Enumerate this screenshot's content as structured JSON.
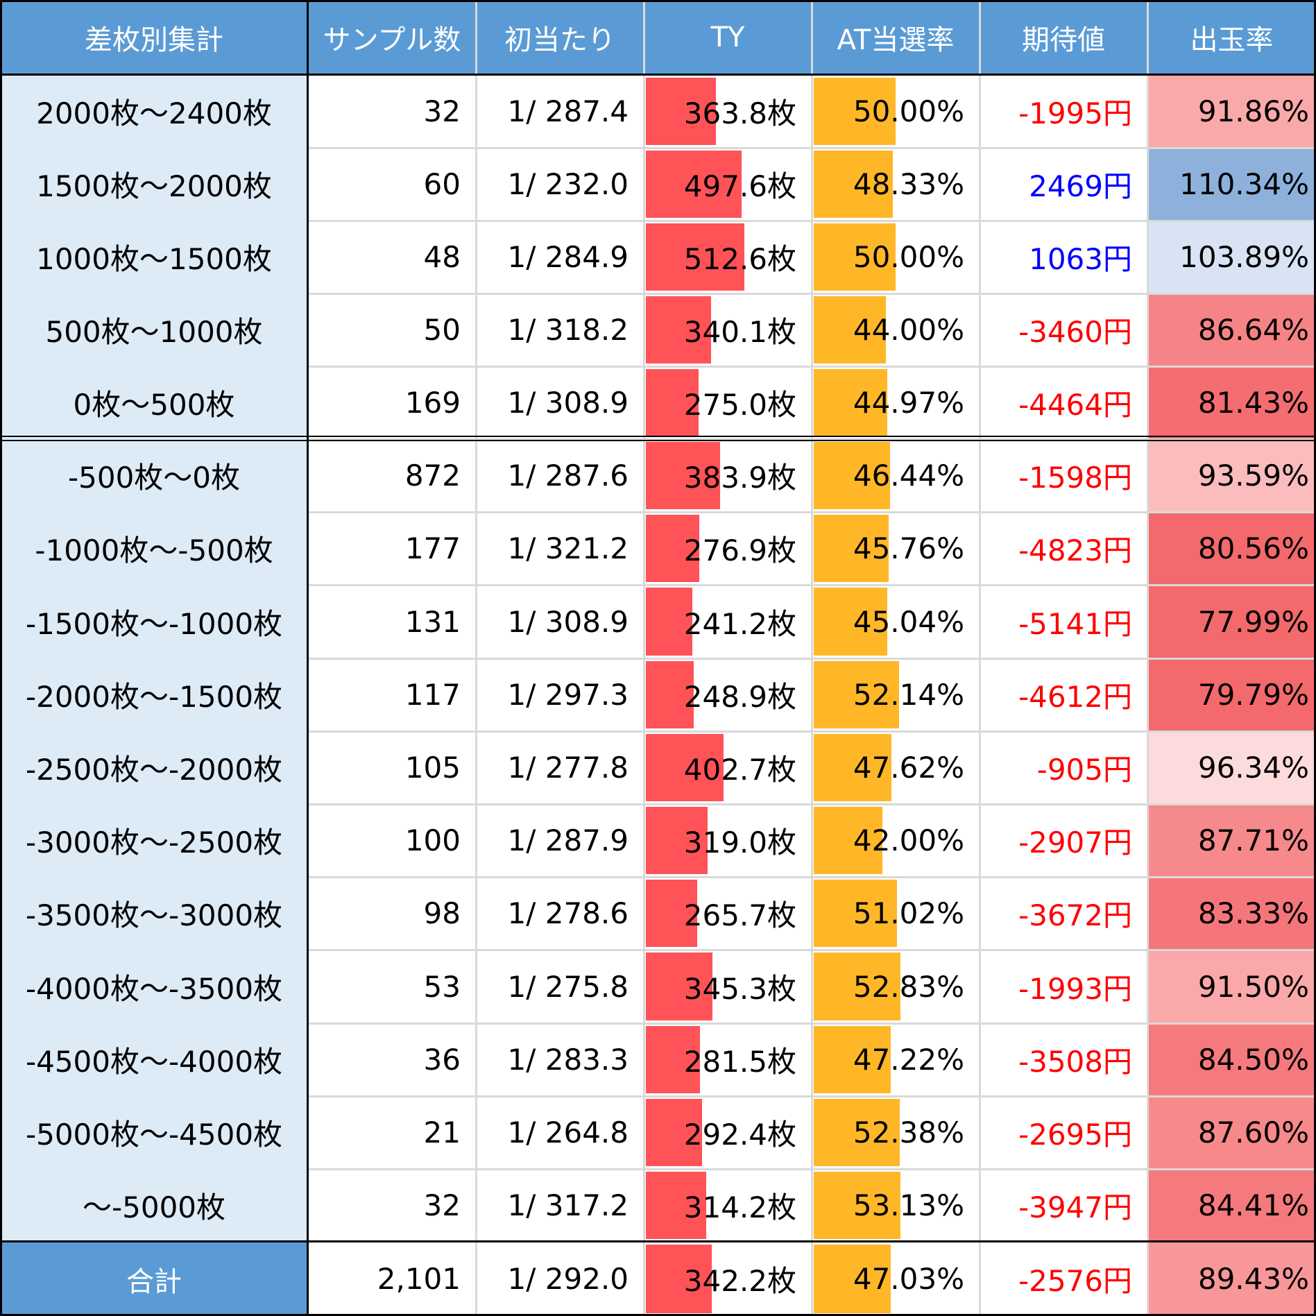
{
  "colors": {
    "header_bg": "#5b9bd5",
    "label_bg": "#ddebf7",
    "ty_bar": "#ff5357",
    "at_bar": "#ffb728",
    "negative_text": "#ff0000",
    "positive_text": "#0000ff"
  },
  "headers": [
    "差枚別集計",
    "サンプル数",
    "初当たり",
    "TY",
    "AT当選率",
    "期待値",
    "出玉率"
  ],
  "chart_data": {
    "type": "table",
    "columns": [
      "差枚別集計",
      "サンプル数",
      "初当たり",
      "TY",
      "AT当選率",
      "期待値",
      "出玉率"
    ],
    "rows": [
      {
        "label": "2000枚～2400枚",
        "samples": "32",
        "first_hit": "1/ 287.4",
        "ty": "363.8枚",
        "ty_value": 363.8,
        "at_rate": "50.00%",
        "at_value": 50.0,
        "ev": "-1995円",
        "ev_value": -1995,
        "payout": "91.86%",
        "payout_value": 91.86,
        "payout_color": "#faa9aa"
      },
      {
        "label": "1500枚～2000枚",
        "samples": "60",
        "first_hit": "1/ 232.0",
        "ty": "497.6枚",
        "ty_value": 497.6,
        "at_rate": "48.33%",
        "at_value": 48.33,
        "ev": "2469円",
        "ev_value": 2469,
        "payout": "110.34%",
        "payout_value": 110.34,
        "payout_color": "#8eb1dc"
      },
      {
        "label": "1000枚～1500枚",
        "samples": "48",
        "first_hit": "1/ 284.9",
        "ty": "512.6枚",
        "ty_value": 512.6,
        "at_rate": "50.00%",
        "at_value": 50.0,
        "ev": "1063円",
        "ev_value": 1063,
        "payout": "103.89%",
        "payout_value": 103.89,
        "payout_color": "#d8e3f3"
      },
      {
        "label": "500枚～1000枚",
        "samples": "50",
        "first_hit": "1/ 318.2",
        "ty": "340.1枚",
        "ty_value": 340.1,
        "at_rate": "44.00%",
        "at_value": 44.0,
        "ev": "-3460円",
        "ev_value": -3460,
        "payout": "86.64%",
        "payout_value": 86.64,
        "payout_color": "#f68486"
      },
      {
        "label": "0枚～500枚",
        "samples": "169",
        "first_hit": "1/ 308.9",
        "ty": "275.0枚",
        "ty_value": 275.0,
        "at_rate": "44.97%",
        "at_value": 44.97,
        "ev": "-4464円",
        "ev_value": -4464,
        "payout": "81.43%",
        "payout_value": 81.43,
        "payout_color": "#f46d70"
      },
      {
        "label": "-500枚～0枚",
        "samples": "872",
        "first_hit": "1/ 287.6",
        "ty": "383.9枚",
        "ty_value": 383.9,
        "at_rate": "46.44%",
        "at_value": 46.44,
        "ev": "-1598円",
        "ev_value": -1598,
        "payout": "93.59%",
        "payout_value": 93.59,
        "payout_color": "#fbbcbd"
      },
      {
        "label": "-1000枚～-500枚",
        "samples": "177",
        "first_hit": "1/ 321.2",
        "ty": "276.9枚",
        "ty_value": 276.9,
        "at_rate": "45.76%",
        "at_value": 45.76,
        "ev": "-4823円",
        "ev_value": -4823,
        "payout": "80.56%",
        "payout_value": 80.56,
        "payout_color": "#f3696c"
      },
      {
        "label": "-1500枚～-1000枚",
        "samples": "131",
        "first_hit": "1/ 308.9",
        "ty": "241.2枚",
        "ty_value": 241.2,
        "at_rate": "45.04%",
        "at_value": 45.04,
        "ev": "-5141円",
        "ev_value": -5141,
        "payout": "77.99%",
        "payout_value": 77.99,
        "payout_color": "#f3696c"
      },
      {
        "label": "-2000枚～-1500枚",
        "samples": "117",
        "first_hit": "1/ 297.3",
        "ty": "248.9枚",
        "ty_value": 248.9,
        "at_rate": "52.14%",
        "at_value": 52.14,
        "ev": "-4612円",
        "ev_value": -4612,
        "payout": "79.79%",
        "payout_value": 79.79,
        "payout_color": "#f3696c"
      },
      {
        "label": "-2500枚～-2000枚",
        "samples": "105",
        "first_hit": "1/ 277.8",
        "ty": "402.7枚",
        "ty_value": 402.7,
        "at_rate": "47.62%",
        "at_value": 47.62,
        "ev": "-905円",
        "ev_value": -905,
        "payout": "96.34%",
        "payout_value": 96.34,
        "payout_color": "#fcdbdc"
      },
      {
        "label": "-3000枚～-2500枚",
        "samples": "100",
        "first_hit": "1/ 287.9",
        "ty": "319.0枚",
        "ty_value": 319.0,
        "at_rate": "42.00%",
        "at_value": 42.0,
        "ev": "-2907円",
        "ev_value": -2907,
        "payout": "87.71%",
        "payout_value": 87.71,
        "payout_color": "#f6898b"
      },
      {
        "label": "-3500枚～-3000枚",
        "samples": "98",
        "first_hit": "1/ 278.6",
        "ty": "265.7枚",
        "ty_value": 265.7,
        "at_rate": "51.02%",
        "at_value": 51.02,
        "ev": "-3672円",
        "ev_value": -3672,
        "payout": "83.33%",
        "payout_value": 83.33,
        "payout_color": "#f5767a"
      },
      {
        "label": "-4000枚～-3500枚",
        "samples": "53",
        "first_hit": "1/ 275.8",
        "ty": "345.3枚",
        "ty_value": 345.3,
        "at_rate": "52.83%",
        "at_value": 52.83,
        "ev": "-1993円",
        "ev_value": -1993,
        "payout": "91.50%",
        "payout_value": 91.5,
        "payout_color": "#faa8a9"
      },
      {
        "label": "-4500枚～-4000枚",
        "samples": "36",
        "first_hit": "1/ 283.3",
        "ty": "281.5枚",
        "ty_value": 281.5,
        "at_rate": "47.22%",
        "at_value": 47.22,
        "ev": "-3508円",
        "ev_value": -3508,
        "payout": "84.50%",
        "payout_value": 84.5,
        "payout_color": "#f57a7d"
      },
      {
        "label": "-5000枚～-4500枚",
        "samples": "21",
        "first_hit": "1/ 264.8",
        "ty": "292.4枚",
        "ty_value": 292.4,
        "at_rate": "52.38%",
        "at_value": 52.38,
        "ev": "-2695円",
        "ev_value": -2695,
        "payout": "87.60%",
        "payout_value": 87.6,
        "payout_color": "#f7898b"
      },
      {
        "label": "～-5000枚",
        "samples": "32",
        "first_hit": "1/ 317.2",
        "ty": "314.2枚",
        "ty_value": 314.2,
        "at_rate": "53.13%",
        "at_value": 53.13,
        "ev": "-3947円",
        "ev_value": -3947,
        "payout": "84.41%",
        "payout_value": 84.41,
        "payout_color": "#f57a7d"
      }
    ],
    "total": {
      "label": "合計",
      "samples": "2,101",
      "first_hit": "1/ 292.0",
      "ty": "342.2枚",
      "ty_value": 342.2,
      "at_rate": "47.03%",
      "at_value": 47.03,
      "ev": "-2576円",
      "ev_value": -2576,
      "payout": "89.43%",
      "payout_value": 89.43,
      "payout_color": "#f89799"
    },
    "ty_bar_max": 850,
    "at_bar_max": 100
  }
}
